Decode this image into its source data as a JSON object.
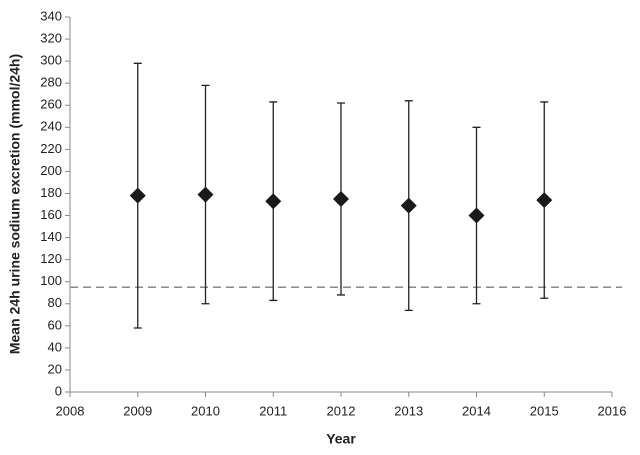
{
  "chart_data": {
    "type": "scatter",
    "xlabel": "Year",
    "ylabel": "Mean 24h urine sodium excretion (mmol/24h)",
    "x": [
      2009,
      2010,
      2011,
      2012,
      2013,
      2014,
      2015
    ],
    "y": [
      178,
      179,
      173,
      175,
      169,
      160,
      174
    ],
    "yerr": [
      120,
      99,
      90,
      87,
      95,
      80,
      89
    ],
    "color": "#1a1a1a",
    "reference_line": 95,
    "xlim": [
      2008,
      2016
    ],
    "xticks": [
      2008,
      2009,
      2010,
      2011,
      2012,
      2013,
      2014,
      2015,
      2016
    ],
    "ylim": [
      0,
      340
    ],
    "yticks": [
      0,
      20,
      40,
      60,
      80,
      100,
      120,
      140,
      160,
      180,
      200,
      220,
      240,
      260,
      280,
      300,
      320,
      340
    ],
    "grid": false
  }
}
